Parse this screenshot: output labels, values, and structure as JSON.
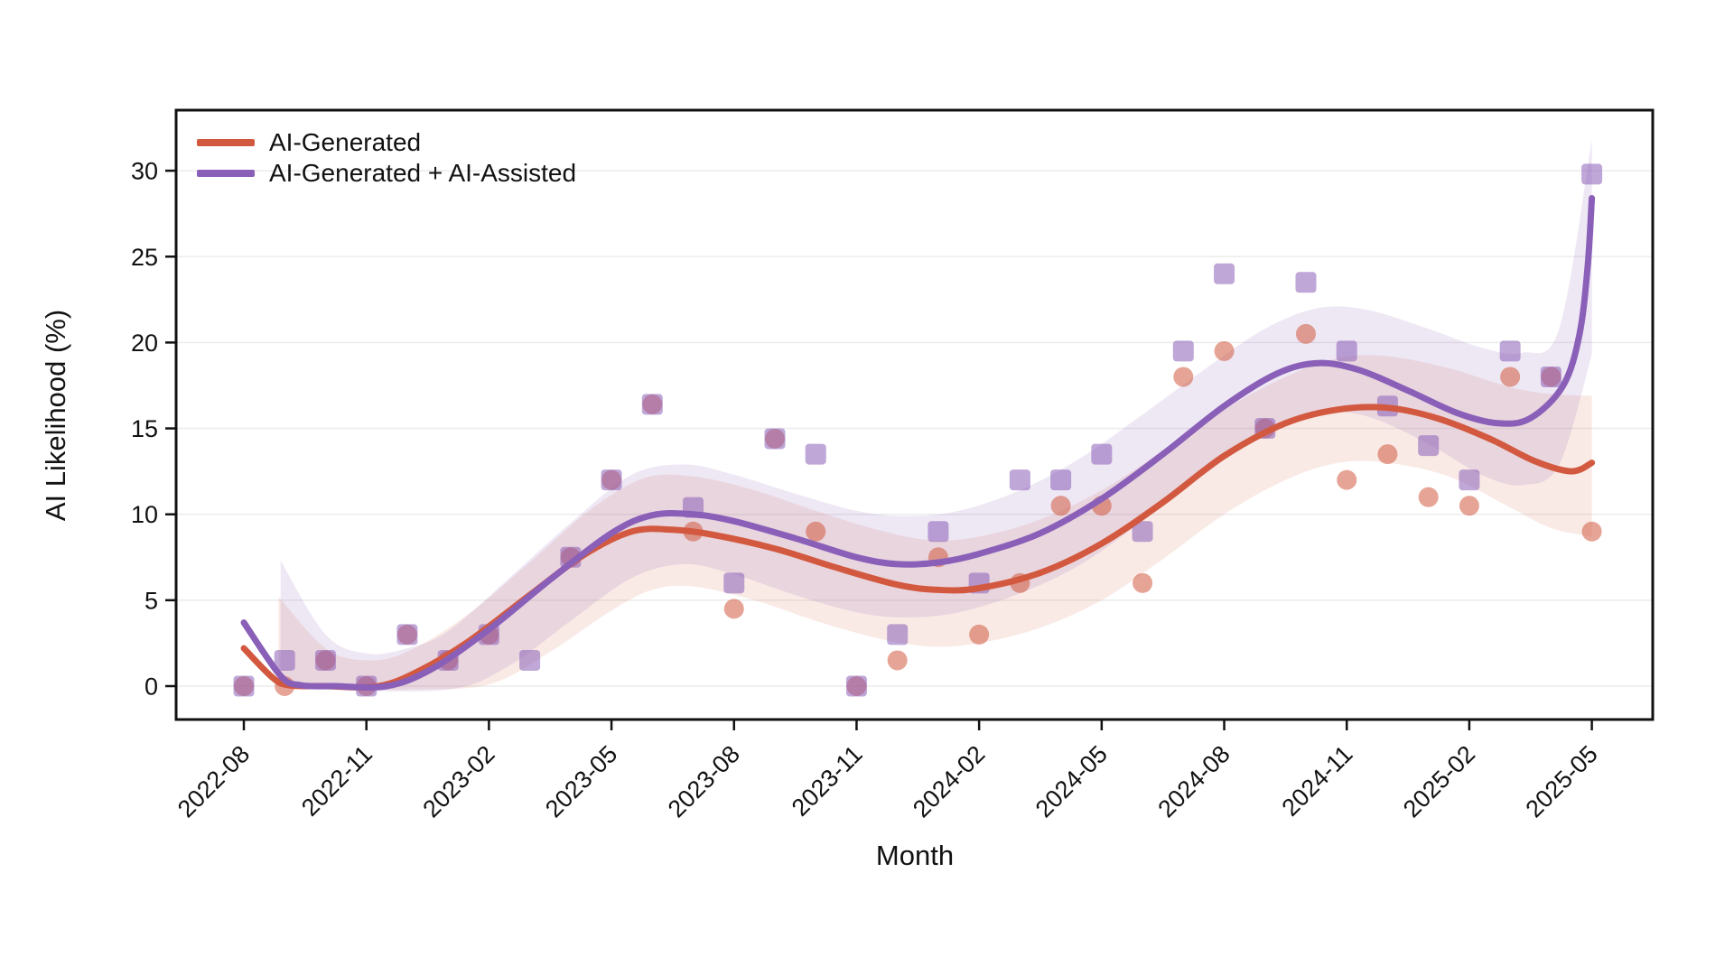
{
  "chart_data": {
    "type": "scatter",
    "subtype": "scatter-with-loess-trend-and-confidence-bands",
    "title": "",
    "xlabel": "Month",
    "ylabel": "AI Likelihood (%)",
    "x_categories": [
      "2022-08",
      "2022-09",
      "2022-10",
      "2022-11",
      "2022-12",
      "2023-01",
      "2023-02",
      "2023-03",
      "2023-04",
      "2023-05",
      "2023-06",
      "2023-07",
      "2023-08",
      "2023-09",
      "2023-10",
      "2023-11",
      "2023-12",
      "2024-01",
      "2024-02",
      "2024-03",
      "2024-04",
      "2024-05",
      "2024-06",
      "2024-07",
      "2024-08",
      "2024-09",
      "2024-10",
      "2024-11",
      "2024-12",
      "2025-01",
      "2025-02",
      "2025-03",
      "2025-04",
      "2025-05"
    ],
    "x_ticks": [
      "2022-08",
      "2022-11",
      "2023-02",
      "2023-05",
      "2023-08",
      "2023-11",
      "2024-02",
      "2024-05",
      "2024-08",
      "2024-11",
      "2025-02",
      "2025-05"
    ],
    "x_tick_rotation_deg": 45,
    "y_ticks": [
      0,
      5,
      10,
      15,
      20,
      25,
      30
    ],
    "ylim": [
      -1.9,
      33.5
    ],
    "grid": "horizontal-only",
    "grid_color": "#ececec",
    "spine_color": "#111111",
    "text_color": "#111111",
    "legend_position": "upper-left",
    "series": [
      {
        "name": "AI-Generated",
        "color": "#d2593f",
        "marker": "circle",
        "marker_opacity": 0.55,
        "band_opacity": 0.13,
        "scatter": [
          0,
          0,
          1.5,
          0,
          3,
          1.5,
          3,
          null,
          7.5,
          12,
          16.4,
          9,
          4.5,
          14.4,
          9,
          0,
          1.5,
          7.5,
          3,
          6,
          10.5,
          10.5,
          6,
          18,
          19.5,
          15,
          20.5,
          12,
          13.5,
          11,
          10.5,
          18,
          18,
          9
        ],
        "trend": [
          [
            0,
            2.2
          ],
          [
            0.7,
            0.5
          ],
          [
            1.1,
            0.05
          ],
          [
            2,
            0
          ],
          [
            3.3,
            0
          ],
          [
            4.3,
            0.9
          ],
          [
            5.5,
            2.6
          ],
          [
            7,
            5.3
          ],
          [
            8.3,
            7.6
          ],
          [
            9.5,
            9.0
          ],
          [
            10.5,
            9.1
          ],
          [
            11.5,
            8.8
          ],
          [
            13,
            8.0
          ],
          [
            14.5,
            6.9
          ],
          [
            16,
            5.9
          ],
          [
            17,
            5.6
          ],
          [
            18,
            5.7
          ],
          [
            19.5,
            6.6
          ],
          [
            21,
            8.3
          ],
          [
            22.5,
            10.7
          ],
          [
            24,
            13.4
          ],
          [
            25.5,
            15.3
          ],
          [
            26.8,
            16.1
          ],
          [
            28,
            16.2
          ],
          [
            29.2,
            15.6
          ],
          [
            30.5,
            14.4
          ],
          [
            31.6,
            13.1
          ],
          [
            32.5,
            12.5
          ],
          [
            33,
            13.0
          ]
        ],
        "band_upper": [
          [
            0.85,
            5.2
          ],
          [
            2,
            2.2
          ],
          [
            3,
            1.5
          ],
          [
            4,
            2.0
          ],
          [
            5.5,
            4.2
          ],
          [
            7,
            7.2
          ],
          [
            8.5,
            10.3
          ],
          [
            9.8,
            12.1
          ],
          [
            11,
            12.2
          ],
          [
            12.5,
            11.4
          ],
          [
            14,
            10.2
          ],
          [
            15.5,
            9.1
          ],
          [
            16.8,
            8.5
          ],
          [
            18,
            8.7
          ],
          [
            19.5,
            9.7
          ],
          [
            21,
            11.4
          ],
          [
            22.5,
            13.7
          ],
          [
            24,
            16.1
          ],
          [
            25.5,
            18.0
          ],
          [
            26.8,
            19.1
          ],
          [
            28,
            19.2
          ],
          [
            29.5,
            18.5
          ],
          [
            31,
            17.4
          ],
          [
            32,
            17.0
          ],
          [
            33,
            16.9
          ]
        ],
        "band_lower": [
          [
            0.85,
            0
          ],
          [
            2,
            -0.2
          ],
          [
            4,
            -0.2
          ],
          [
            6,
            0.1
          ],
          [
            7.5,
            2.0
          ],
          [
            9,
            4.4
          ],
          [
            10,
            5.6
          ],
          [
            11,
            5.8
          ],
          [
            12.5,
            5.0
          ],
          [
            14,
            3.8
          ],
          [
            15.5,
            2.8
          ],
          [
            16.8,
            2.3
          ],
          [
            18,
            2.5
          ],
          [
            19.5,
            3.4
          ],
          [
            21,
            5.0
          ],
          [
            22.5,
            7.4
          ],
          [
            24,
            10.0
          ],
          [
            25.5,
            12.0
          ],
          [
            26.8,
            13.0
          ],
          [
            28,
            13.0
          ],
          [
            29.5,
            12.2
          ],
          [
            31,
            10.4
          ],
          [
            32,
            9.2
          ],
          [
            33,
            8.7
          ]
        ]
      },
      {
        "name": "AI-Generated + AI-Assisted",
        "color": "#8a5fb8",
        "marker": "square",
        "marker_opacity": 0.55,
        "band_opacity": 0.15,
        "scatter": [
          0,
          1.5,
          1.5,
          0,
          3,
          1.5,
          3,
          1.5,
          7.5,
          12,
          16.4,
          10.4,
          6,
          14.4,
          13.5,
          0,
          3,
          9,
          6,
          12,
          12,
          13.5,
          9,
          19.5,
          24,
          15,
          23.5,
          19.5,
          16.3,
          14,
          12,
          19.5,
          18,
          29.8
        ],
        "trend": [
          [
            0,
            3.7
          ],
          [
            0.9,
            0.6
          ],
          [
            1.4,
            0.05
          ],
          [
            2.2,
            0
          ],
          [
            3.5,
            0
          ],
          [
            4.6,
            1.0
          ],
          [
            6,
            3.3
          ],
          [
            7.5,
            6.2
          ],
          [
            9,
            8.9
          ],
          [
            10,
            9.95
          ],
          [
            11,
            10.0
          ],
          [
            12,
            9.6
          ],
          [
            13.5,
            8.6
          ],
          [
            15,
            7.5
          ],
          [
            16,
            7.1
          ],
          [
            17,
            7.2
          ],
          [
            18,
            7.7
          ],
          [
            19.5,
            8.9
          ],
          [
            21,
            10.9
          ],
          [
            22.5,
            13.5
          ],
          [
            24,
            16.3
          ],
          [
            25.3,
            18.2
          ],
          [
            26.3,
            18.8
          ],
          [
            27.3,
            18.4
          ],
          [
            28.5,
            17.2
          ],
          [
            29.7,
            15.9
          ],
          [
            30.7,
            15.3
          ],
          [
            31.5,
            15.6
          ],
          [
            32.3,
            17.5
          ],
          [
            32.7,
            20.5
          ],
          [
            32.9,
            24.5
          ],
          [
            33,
            28.4
          ]
        ],
        "band_upper": [
          [
            0.9,
            7.3
          ],
          [
            2,
            3.0
          ],
          [
            3,
            1.9
          ],
          [
            4,
            2.2
          ],
          [
            5,
            3.2
          ],
          [
            6.5,
            6.3
          ],
          [
            8,
            9.5
          ],
          [
            9.5,
            12.3
          ],
          [
            10.8,
            12.9
          ],
          [
            12,
            12.3
          ],
          [
            13.5,
            11.2
          ],
          [
            15,
            10.2
          ],
          [
            16.2,
            9.9
          ],
          [
            17.5,
            10.2
          ],
          [
            19,
            11.4
          ],
          [
            20.5,
            13.3
          ],
          [
            22,
            15.8
          ],
          [
            23.5,
            18.4
          ],
          [
            25,
            20.8
          ],
          [
            26.3,
            22.0
          ],
          [
            27.5,
            21.9
          ],
          [
            29,
            20.8
          ],
          [
            30.3,
            19.7
          ],
          [
            31.3,
            19.4
          ],
          [
            32.2,
            20.8
          ],
          [
            33,
            31.8
          ]
        ],
        "band_lower": [
          [
            0.9,
            0
          ],
          [
            2,
            -0.2
          ],
          [
            5,
            -0.2
          ],
          [
            6.5,
            1.2
          ],
          [
            8,
            3.8
          ],
          [
            9.5,
            6.3
          ],
          [
            10.8,
            7.1
          ],
          [
            12,
            6.5
          ],
          [
            13.5,
            5.3
          ],
          [
            15,
            4.3
          ],
          [
            16.2,
            4.0
          ],
          [
            17.5,
            4.3
          ],
          [
            19,
            5.4
          ],
          [
            20.5,
            7.1
          ],
          [
            22,
            9.6
          ],
          [
            23.5,
            12.3
          ],
          [
            25,
            14.7
          ],
          [
            26.3,
            15.9
          ],
          [
            27.5,
            15.7
          ],
          [
            29,
            14.1
          ],
          [
            30.3,
            12.3
          ],
          [
            31.3,
            11.7
          ],
          [
            32.2,
            12.9
          ],
          [
            33,
            19.3
          ]
        ]
      }
    ]
  }
}
